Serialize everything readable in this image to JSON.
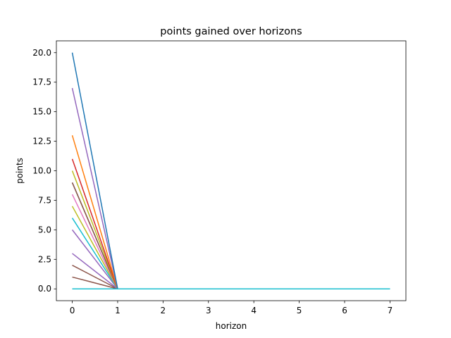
{
  "chart_data": {
    "type": "line",
    "title": "points gained over horizons",
    "xlabel": "horizon",
    "ylabel": "points",
    "xlim": [
      -0.35,
      7.35
    ],
    "ylim": [
      -1.0,
      21.0
    ],
    "xticks": [
      0,
      1,
      2,
      3,
      4,
      5,
      6,
      7
    ],
    "xtick_labels": [
      "0",
      "1",
      "2",
      "3",
      "4",
      "5",
      "6",
      "7"
    ],
    "yticks": [
      0,
      2.5,
      5,
      7.5,
      10,
      12.5,
      15,
      17.5,
      20
    ],
    "ytick_labels": [
      "0.0",
      "2.5",
      "5.0",
      "7.5",
      "10.0",
      "12.5",
      "15.0",
      "17.5",
      "20.0"
    ],
    "grid": false,
    "x": [
      0,
      1,
      2,
      3,
      4,
      5,
      6,
      7
    ],
    "series": [
      {
        "color": "#2ca02c",
        "values": [
          0,
          0,
          0,
          0,
          0,
          0,
          0,
          0
        ]
      },
      {
        "color": "#8c564b",
        "values": [
          1,
          0,
          0,
          0,
          0,
          0,
          0,
          0
        ]
      },
      {
        "color": "#8c564b",
        "values": [
          2,
          0,
          0,
          0,
          0,
          0,
          0,
          0
        ]
      },
      {
        "color": "#9467bd",
        "values": [
          3,
          0,
          0,
          0,
          0,
          0,
          0,
          0
        ]
      },
      {
        "color": "#9467bd",
        "values": [
          5,
          0,
          0,
          0,
          0,
          0,
          0,
          0
        ]
      },
      {
        "color": "#17becf",
        "values": [
          6,
          0,
          0,
          0,
          0,
          0,
          0,
          0
        ]
      },
      {
        "color": "#bcbd22",
        "values": [
          7,
          0,
          0,
          0,
          0,
          0,
          0,
          0
        ]
      },
      {
        "color": "#e377c2",
        "values": [
          8,
          0,
          0,
          0,
          0,
          0,
          0,
          0
        ]
      },
      {
        "color": "#7f7f7f",
        "values": [
          9,
          0,
          0,
          0,
          0,
          0,
          0,
          0
        ]
      },
      {
        "color": "#8c564b",
        "values": [
          9,
          0,
          0,
          0,
          0,
          0,
          0,
          0
        ]
      },
      {
        "color": "#bcbd22",
        "values": [
          10,
          0,
          0,
          0,
          0,
          0,
          0,
          0
        ]
      },
      {
        "color": "#d62728",
        "values": [
          11,
          0,
          0,
          0,
          0,
          0,
          0,
          0
        ]
      },
      {
        "color": "#ff7f0e",
        "values": [
          13,
          0,
          0,
          0,
          0,
          0,
          0,
          0
        ]
      },
      {
        "color": "#9467bd",
        "values": [
          17,
          0,
          0,
          0,
          0,
          0,
          0,
          0
        ]
      },
      {
        "color": "#1f77b4",
        "values": [
          20,
          0,
          0,
          0,
          0,
          0,
          0,
          0
        ]
      },
      {
        "color": "#17becf",
        "values": [
          0,
          0,
          0,
          0,
          0,
          0,
          0,
          0
        ]
      }
    ]
  }
}
